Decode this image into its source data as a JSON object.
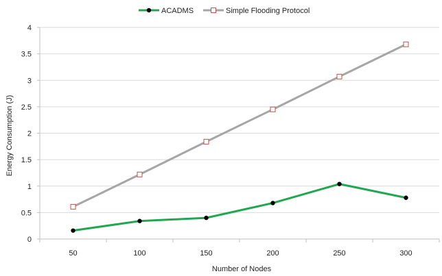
{
  "chart_data": {
    "type": "line",
    "x": [
      50,
      100,
      150,
      200,
      250,
      300
    ],
    "series": [
      {
        "name": "ACADMS",
        "values": [
          0.16,
          0.34,
          0.4,
          0.68,
          1.04,
          0.78
        ],
        "color": "#21a84f",
        "marker": "filled-circle",
        "marker_color": "#000000"
      },
      {
        "name": "Simple Flooding Protocol",
        "values": [
          0.61,
          1.22,
          1.84,
          2.45,
          3.07,
          3.68
        ],
        "color": "#a6a6a6",
        "marker": "open-square",
        "marker_color": "#c0504d"
      }
    ],
    "xlabel": "Number of Nodes",
    "ylabel": "Energy Consumption (J)",
    "ylim": [
      0,
      4
    ],
    "yticks": [
      0,
      0.5,
      1,
      1.5,
      2,
      2.5,
      3,
      3.5,
      4
    ],
    "ytick_labels": [
      "0",
      "0.5",
      "1",
      "1.5",
      "2",
      "2.5",
      "3",
      "3.5",
      "4"
    ],
    "xtick_labels": [
      "50",
      "100",
      "150",
      "200",
      "250",
      "300"
    ],
    "grid": "horizontal",
    "legend": "top-center"
  }
}
